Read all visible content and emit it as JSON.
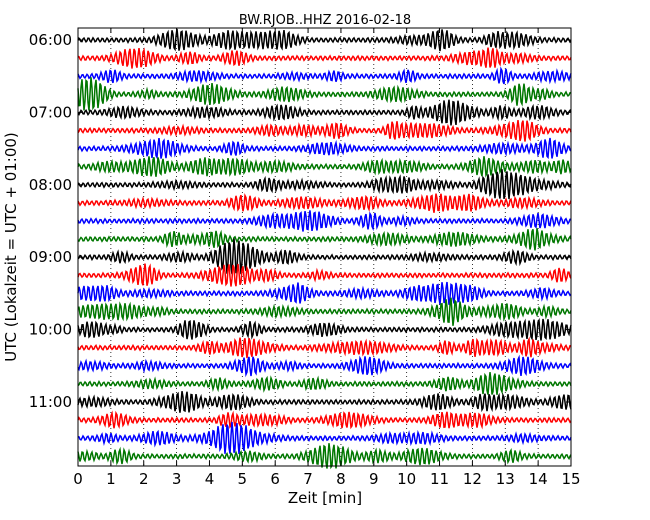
{
  "chart_data": {
    "type": "line",
    "title": "BW.RJOB..HHZ 2016-02-18",
    "xlabel": "Zeit  [min]",
    "ylabel": "UTC (Lokalzeit = UTC + 01:00)",
    "xlim": [
      0,
      15
    ],
    "x_ticks": [
      "0",
      "1",
      "2",
      "3",
      "4",
      "5",
      "6",
      "7",
      "8",
      "9",
      "10",
      "11",
      "12",
      "13",
      "14",
      "15"
    ],
    "y_ticks": [
      "06:00",
      "07:00",
      "08:00",
      "09:00",
      "10:00",
      "11:00"
    ],
    "grid": "vertical dotted",
    "trace_colors": [
      "#000000",
      "#ff0000",
      "#0000ff",
      "#007700"
    ],
    "series": [
      {
        "start": "06:00",
        "color": "#000000"
      },
      {
        "start": "06:15",
        "color": "#ff0000"
      },
      {
        "start": "06:30",
        "color": "#0000ff"
      },
      {
        "start": "06:45",
        "color": "#007700"
      },
      {
        "start": "07:00",
        "color": "#000000"
      },
      {
        "start": "07:15",
        "color": "#ff0000"
      },
      {
        "start": "07:30",
        "color": "#0000ff"
      },
      {
        "start": "07:45",
        "color": "#007700"
      },
      {
        "start": "08:00",
        "color": "#000000"
      },
      {
        "start": "08:15",
        "color": "#ff0000"
      },
      {
        "start": "08:30",
        "color": "#0000ff"
      },
      {
        "start": "08:45",
        "color": "#007700"
      },
      {
        "start": "09:00",
        "color": "#000000"
      },
      {
        "start": "09:15",
        "color": "#ff0000"
      },
      {
        "start": "09:30",
        "color": "#0000ff"
      },
      {
        "start": "09:45",
        "color": "#007700"
      },
      {
        "start": "10:00",
        "color": "#000000"
      },
      {
        "start": "10:15",
        "color": "#ff0000"
      },
      {
        "start": "10:30",
        "color": "#0000ff"
      },
      {
        "start": "10:45",
        "color": "#007700"
      },
      {
        "start": "11:00",
        "color": "#000000"
      },
      {
        "start": "11:15",
        "color": "#ff0000"
      },
      {
        "start": "11:30",
        "color": "#0000ff"
      },
      {
        "start": "11:45",
        "color": "#007700"
      }
    ]
  }
}
